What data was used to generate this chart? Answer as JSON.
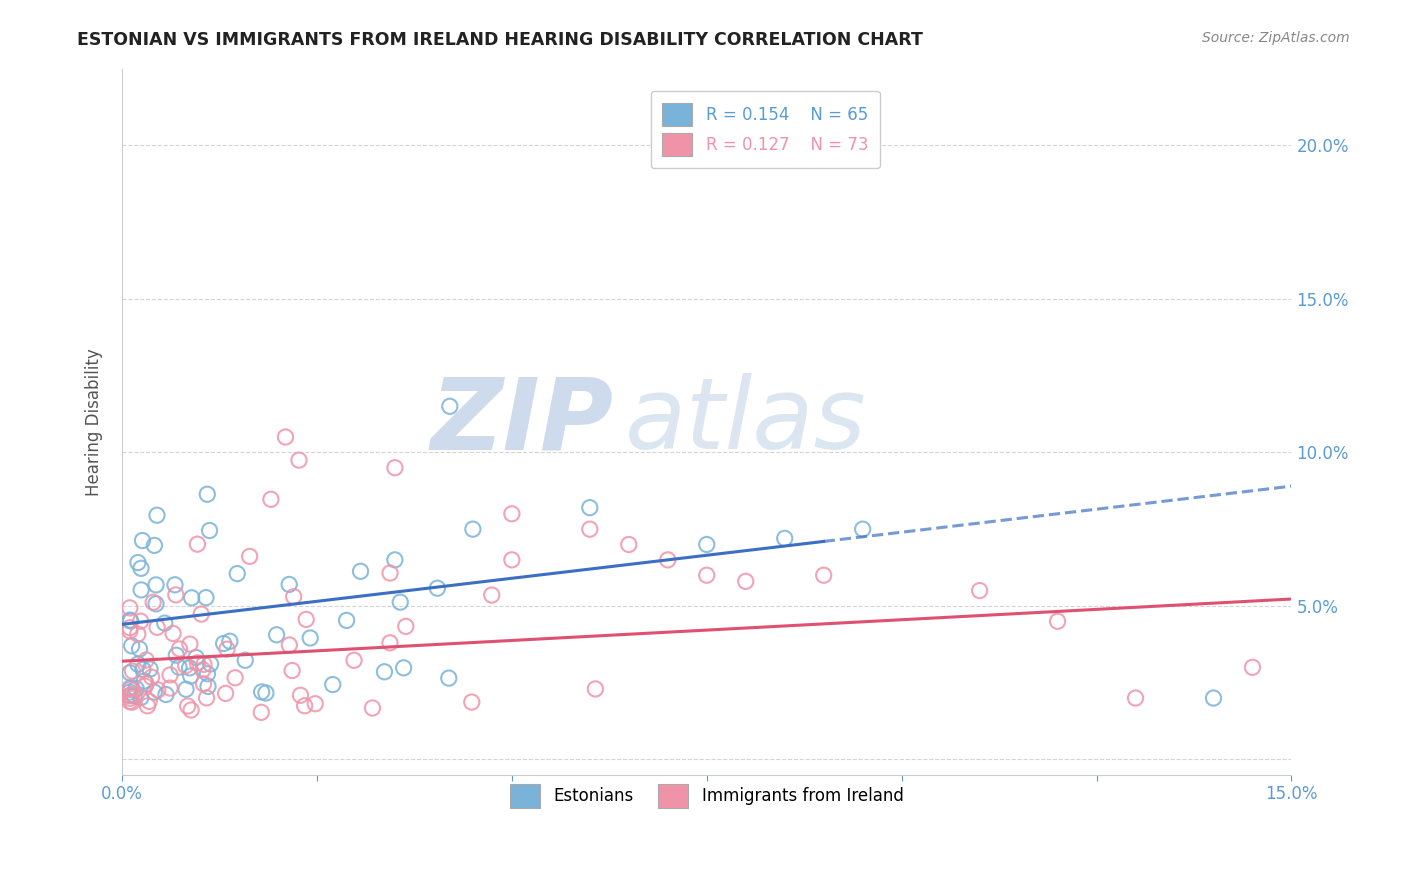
{
  "title": "ESTONIAN VS IMMIGRANTS FROM IRELAND HEARING DISABILITY CORRELATION CHART",
  "source": "Source: ZipAtlas.com",
  "ylabel": "Hearing Disability",
  "xlim": [
    0.0,
    0.15
  ],
  "ylim": [
    -0.005,
    0.225
  ],
  "color_estonian": "#7ab3d9",
  "color_ireland": "#f093a8",
  "color_line_estonian": "#3a6fc4",
  "color_line_ireland": "#e05070",
  "watermark_zip": "ZIP",
  "watermark_atlas": "atlas",
  "right_tick_color": "#5b9bd5",
  "bottom_tick_color": "#5b9bd5",
  "est_line_solid_end": 0.09,
  "est_intercept": 0.044,
  "est_slope": 0.3,
  "ire_intercept": 0.032,
  "ire_slope": 0.135
}
